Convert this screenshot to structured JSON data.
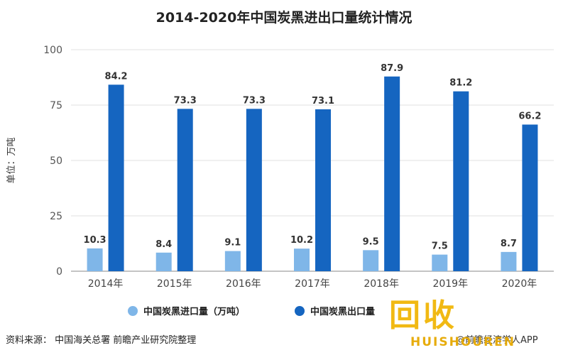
{
  "chart_data": {
    "type": "bar",
    "title": "2014-2020年中国炭黑进出口量统计情况",
    "ylabel": "单位：万吨",
    "xlabel": "",
    "categories": [
      "2014年",
      "2015年",
      "2016年",
      "2017年",
      "2018年",
      "2019年",
      "2020年"
    ],
    "series": [
      {
        "name": "中国炭黑进口量（万吨）",
        "values": [
          10.3,
          8.4,
          9.1,
          10.2,
          9.5,
          7.5,
          8.7
        ],
        "color": "#7fb6e8"
      },
      {
        "name": "中国炭黑出口量",
        "values": [
          84.2,
          73.3,
          73.3,
          73.1,
          87.9,
          81.2,
          66.2
        ],
        "color": "#1565c0"
      }
    ],
    "ylim": [
      0,
      100
    ],
    "yticks": [
      0,
      25,
      50,
      75,
      100
    ],
    "grid": true,
    "legend": "bottom"
  },
  "source": "资料来源： 中国海关总署 前瞻产业研究院整理",
  "credit": "@前瞻经济学人APP",
  "watermark": {
    "big": "回收",
    "text": "HUISHOUREN"
  }
}
